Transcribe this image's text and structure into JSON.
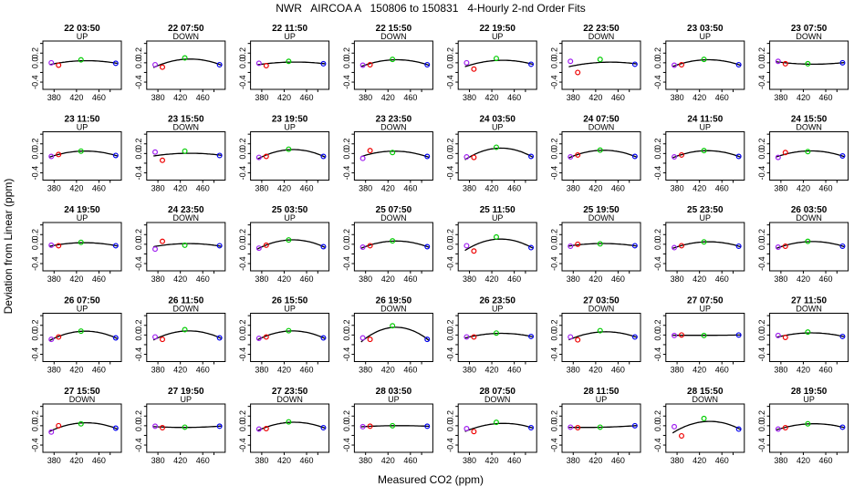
{
  "chart_data": {
    "type": "scatter",
    "title": "NWR   AIRCOA A   150806 to 150831   4-Hourly 2-nd Order Fits",
    "xlabel": "Measured CO2 (ppm)",
    "ylabel": "Deviation from Linear (ppm)",
    "xlim": [
      360,
      500
    ],
    "ylim": [
      -0.55,
      0.45
    ],
    "xticks": [
      "380",
      "420",
      "460"
    ],
    "yticks": [
      "-0.4",
      "0.0",
      "0.2"
    ],
    "std_x": [
      375,
      388,
      428,
      490
    ],
    "point_colors": [
      "#a020f0",
      "#ee0000",
      "#00cc00",
      "#0000ee"
    ],
    "panels": [
      {
        "label": "22 03:50",
        "dir": "UP",
        "y": [
          0.0,
          -0.05,
          0.06,
          -0.01
        ]
      },
      {
        "label": "22 07:50",
        "dir": "DOWN",
        "y": [
          -0.04,
          -0.09,
          0.1,
          -0.04
        ]
      },
      {
        "label": "22 11:50",
        "dir": "UP",
        "y": [
          -0.01,
          -0.06,
          0.03,
          -0.02
        ]
      },
      {
        "label": "22 15:50",
        "dir": "DOWN",
        "y": [
          -0.05,
          -0.04,
          0.07,
          -0.04
        ]
      },
      {
        "label": "22 19:50",
        "dir": "UP",
        "y": [
          0.0,
          -0.13,
          0.09,
          -0.03
        ]
      },
      {
        "label": "22 23:50",
        "dir": "DOWN",
        "y": [
          0.03,
          -0.2,
          0.07,
          -0.03
        ]
      },
      {
        "label": "23 03:50",
        "dir": "UP",
        "y": [
          -0.05,
          -0.04,
          0.07,
          -0.04
        ]
      },
      {
        "label": "23 07:50",
        "dir": "DOWN",
        "y": [
          0.03,
          -0.02,
          -0.02,
          0.0
        ]
      },
      {
        "label": "23 11:50",
        "dir": "UP",
        "y": [
          -0.06,
          -0.02,
          0.05,
          -0.04
        ]
      },
      {
        "label": "23 15:50",
        "dir": "DOWN",
        "y": [
          0.03,
          -0.14,
          0.05,
          -0.04
        ]
      },
      {
        "label": "23 19:50",
        "dir": "UP",
        "y": [
          -0.08,
          -0.06,
          0.09,
          -0.06
        ]
      },
      {
        "label": "23 23:50",
        "dir": "DOWN",
        "y": [
          -0.1,
          0.06,
          0.02,
          -0.06
        ]
      },
      {
        "label": "24 03:50",
        "dir": "UP",
        "y": [
          -0.07,
          -0.08,
          0.13,
          -0.06
        ]
      },
      {
        "label": "24 07:50",
        "dir": "DOWN",
        "y": [
          -0.07,
          -0.03,
          0.07,
          -0.06
        ]
      },
      {
        "label": "24 11:50",
        "dir": "UP",
        "y": [
          -0.07,
          -0.03,
          0.06,
          -0.06
        ]
      },
      {
        "label": "24 15:50",
        "dir": "DOWN",
        "y": [
          -0.08,
          0.02,
          0.04,
          -0.05
        ]
      },
      {
        "label": "24 19:50",
        "dir": "UP",
        "y": [
          -0.02,
          -0.03,
          0.04,
          -0.03
        ]
      },
      {
        "label": "24 23:50",
        "dir": "DOWN",
        "y": [
          -0.1,
          0.06,
          -0.02,
          -0.03
        ]
      },
      {
        "label": "25 03:50",
        "dir": "UP",
        "y": [
          -0.08,
          -0.02,
          0.09,
          -0.05
        ]
      },
      {
        "label": "25 07:50",
        "dir": "DOWN",
        "y": [
          -0.06,
          -0.03,
          0.07,
          -0.05
        ]
      },
      {
        "label": "25 11:50",
        "dir": "UP",
        "y": [
          -0.03,
          -0.14,
          0.15,
          -0.07
        ]
      },
      {
        "label": "25 19:50",
        "dir": "DOWN",
        "y": [
          -0.04,
          0.0,
          0.01,
          -0.03
        ]
      },
      {
        "label": "25 23:50",
        "dir": "UP",
        "y": [
          -0.07,
          -0.03,
          0.05,
          -0.04
        ]
      },
      {
        "label": "26 03:50",
        "dir": "DOWN",
        "y": [
          -0.06,
          -0.04,
          0.06,
          -0.04
        ]
      },
      {
        "label": "26 07:50",
        "dir": "UP",
        "y": [
          -0.09,
          -0.04,
          0.08,
          -0.06
        ]
      },
      {
        "label": "26 11:50",
        "dir": "DOWN",
        "y": [
          -0.04,
          -0.09,
          0.11,
          -0.06
        ]
      },
      {
        "label": "26 15:50",
        "dir": "UP",
        "y": [
          -0.07,
          -0.04,
          0.09,
          -0.06
        ]
      },
      {
        "label": "26 19:50",
        "dir": "DOWN",
        "y": [
          -0.06,
          -0.09,
          0.19,
          -0.09
        ]
      },
      {
        "label": "26 23:50",
        "dir": "UP",
        "y": [
          -0.04,
          -0.04,
          0.04,
          -0.03
        ]
      },
      {
        "label": "27 03:50",
        "dir": "DOWN",
        "y": [
          -0.04,
          -0.1,
          0.09,
          -0.04
        ]
      },
      {
        "label": "27 07:50",
        "dir": "UP",
        "y": [
          -0.01,
          0.0,
          -0.01,
          0.0
        ]
      },
      {
        "label": "27 11:50",
        "dir": "DOWN",
        "y": [
          -0.01,
          -0.05,
          0.06,
          -0.03
        ]
      },
      {
        "label": "27 15:50",
        "dir": "DOWN",
        "y": [
          -0.13,
          0.0,
          0.04,
          -0.05
        ]
      },
      {
        "label": "27 19:50",
        "dir": "UP",
        "y": [
          -0.01,
          -0.04,
          -0.03,
          -0.01
        ]
      },
      {
        "label": "27 23:50",
        "dir": "DOWN",
        "y": [
          -0.07,
          -0.06,
          0.08,
          -0.04
        ]
      },
      {
        "label": "28 03:50",
        "dir": "UP",
        "y": [
          -0.02,
          -0.01,
          0.0,
          -0.01
        ]
      },
      {
        "label": "28 07:50",
        "dir": "DOWN",
        "y": [
          -0.06,
          -0.12,
          0.07,
          -0.04
        ]
      },
      {
        "label": "28 11:50",
        "dir": "UP",
        "y": [
          -0.03,
          -0.04,
          -0.03,
          0.0
        ]
      },
      {
        "label": "28 15:50",
        "dir": "DOWN",
        "y": [
          -0.02,
          -0.21,
          0.15,
          -0.07
        ]
      },
      {
        "label": "28 19:50",
        "dir": "UP",
        "y": [
          -0.07,
          -0.04,
          0.04,
          -0.03
        ]
      }
    ]
  }
}
